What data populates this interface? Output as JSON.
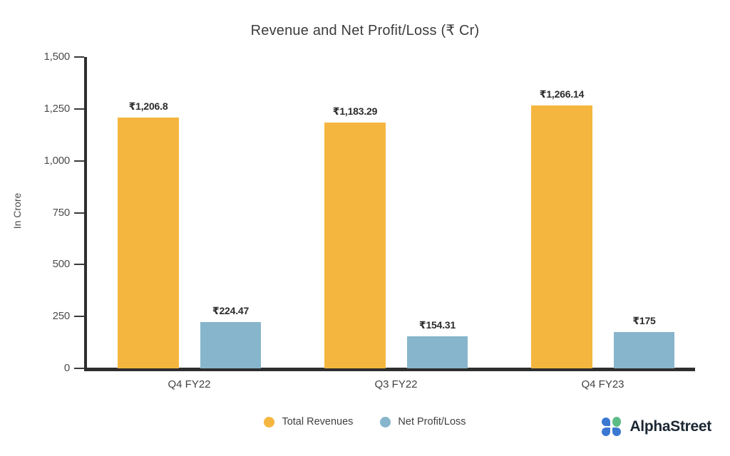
{
  "chart_data": {
    "type": "bar",
    "title": "Revenue and Net Profit/Loss (₹ Cr)",
    "xlabel": "",
    "ylabel": "In Crore",
    "ylim": [
      0,
      1500
    ],
    "grid": false,
    "legend_position": "bottom",
    "yticks": [
      {
        "value": 0,
        "label": "0"
      },
      {
        "value": 250,
        "label": "250"
      },
      {
        "value": 500,
        "label": "500"
      },
      {
        "value": 750,
        "label": "750"
      },
      {
        "value": 1000,
        "label": "1,000"
      },
      {
        "value": 1250,
        "label": "1,250"
      },
      {
        "value": 1500,
        "label": "1,500"
      }
    ],
    "categories": [
      "Q4 FY22",
      "Q3 FY22",
      "Q4 FY23"
    ],
    "series": [
      {
        "name": "Total Revenues",
        "color": "#F5B63F",
        "values": [
          1206.8,
          1183.29,
          1266.14
        ],
        "labels": [
          "₹1,206.8",
          "₹1,183.29",
          "₹1,266.14"
        ]
      },
      {
        "name": "Net Profit/Loss",
        "color": "#87B5CC",
        "values": [
          224.47,
          154.31,
          175
        ],
        "labels": [
          "₹224.47",
          "₹154.31",
          "₹175"
        ]
      }
    ]
  },
  "legend": {
    "items": [
      {
        "label": "Total Revenues",
        "color": "#F5B63F"
      },
      {
        "label": "Net Profit/Loss",
        "color": "#87B5CC"
      }
    ]
  },
  "branding": {
    "name": "AlphaStreet",
    "icon_blue": "#3B78D2",
    "icon_green": "#5CBC86"
  },
  "colors": {
    "axis": "#2e2e2e",
    "tick_text": "#4d4d4d",
    "title_text": "#3c3c3c",
    "bar_label_text": "#2b2b2b",
    "background": "#ffffff"
  }
}
